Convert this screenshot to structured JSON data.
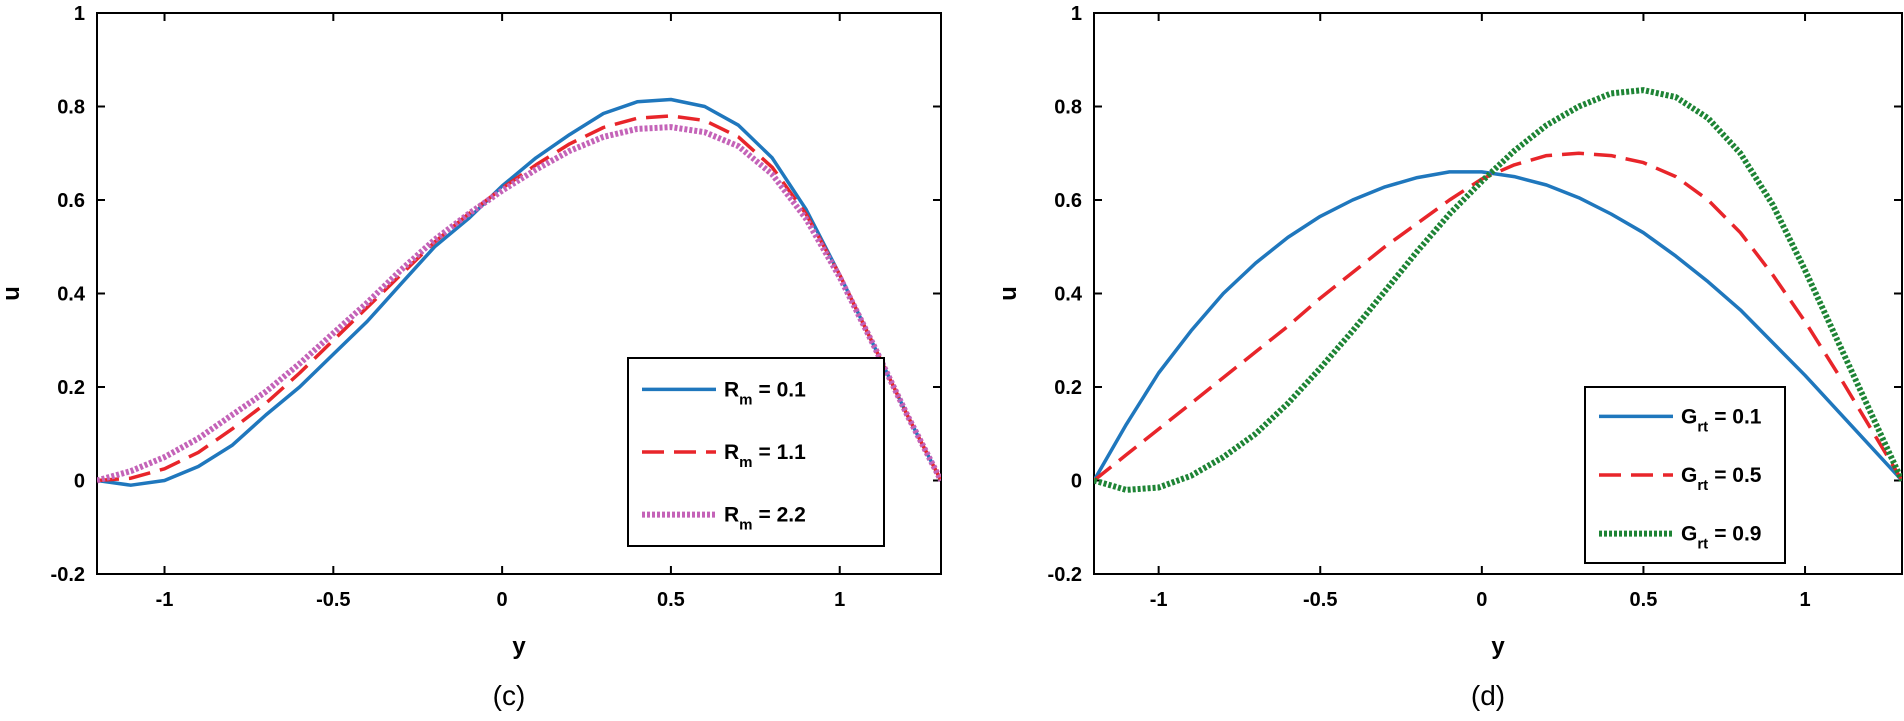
{
  "chart_data": [
    {
      "type": "line",
      "panel": "(c)",
      "caption": "(c)",
      "xlabel": "y",
      "ylabel": "u",
      "xlim": [
        -1.2,
        1.3
      ],
      "ylim": [
        -0.2,
        1.0
      ],
      "xticks": [
        "-1",
        "-0.5",
        "0",
        "0.5",
        "1"
      ],
      "yticks": [
        "-0.2",
        "0",
        "0.2",
        "0.4",
        "0.6",
        "0.8",
        "1"
      ],
      "legend_position": "bottom-right",
      "series": [
        {
          "name": "Rm = 0.1",
          "symbol": "R",
          "subscript": "m",
          "value": "= 0.1",
          "color": "#1f77bd",
          "style": "solid",
          "x": [
            -1.2,
            -1.1,
            -1.0,
            -0.9,
            -0.8,
            -0.7,
            -0.6,
            -0.5,
            -0.4,
            -0.3,
            -0.2,
            -0.1,
            0.0,
            0.1,
            0.2,
            0.3,
            0.4,
            0.5,
            0.6,
            0.7,
            0.8,
            0.9,
            1.0,
            1.1,
            1.2,
            1.3
          ],
          "y": [
            0.0,
            -0.01,
            0.0,
            0.03,
            0.075,
            0.14,
            0.2,
            0.27,
            0.34,
            0.42,
            0.5,
            0.56,
            0.63,
            0.69,
            0.74,
            0.785,
            0.81,
            0.815,
            0.8,
            0.76,
            0.69,
            0.58,
            0.44,
            0.29,
            0.14,
            0.0
          ]
        },
        {
          "name": "Rm = 1.1",
          "symbol": "R",
          "subscript": "m",
          "value": "= 1.1",
          "color": "#e8252a",
          "style": "dashed",
          "x": [
            -1.2,
            -1.1,
            -1.0,
            -0.9,
            -0.8,
            -0.7,
            -0.6,
            -0.5,
            -0.4,
            -0.3,
            -0.2,
            -0.1,
            0.0,
            0.1,
            0.2,
            0.3,
            0.4,
            0.5,
            0.6,
            0.7,
            0.8,
            0.9,
            1.0,
            1.1,
            1.2,
            1.3
          ],
          "y": [
            0.0,
            0.005,
            0.025,
            0.06,
            0.11,
            0.165,
            0.23,
            0.3,
            0.37,
            0.44,
            0.51,
            0.57,
            0.625,
            0.675,
            0.72,
            0.755,
            0.775,
            0.78,
            0.77,
            0.735,
            0.67,
            0.57,
            0.44,
            0.29,
            0.14,
            0.0
          ]
        },
        {
          "name": "Rm = 2.2",
          "symbol": "R",
          "subscript": "m",
          "value": "= 2.2",
          "color": "#c463b8",
          "style": "dotted",
          "x": [
            -1.2,
            -1.1,
            -1.0,
            -0.9,
            -0.8,
            -0.7,
            -0.6,
            -0.5,
            -0.4,
            -0.3,
            -0.2,
            -0.1,
            0.0,
            0.1,
            0.2,
            0.3,
            0.4,
            0.5,
            0.6,
            0.7,
            0.8,
            0.9,
            1.0,
            1.1,
            1.2,
            1.3
          ],
          "y": [
            0.0,
            0.02,
            0.05,
            0.09,
            0.14,
            0.19,
            0.25,
            0.315,
            0.38,
            0.45,
            0.515,
            0.57,
            0.62,
            0.665,
            0.705,
            0.735,
            0.752,
            0.756,
            0.745,
            0.715,
            0.655,
            0.56,
            0.435,
            0.29,
            0.14,
            0.0
          ]
        }
      ]
    },
    {
      "type": "line",
      "panel": "(d)",
      "caption": "(d)",
      "xlabel": "y",
      "ylabel": "u",
      "xlim": [
        -1.2,
        1.3
      ],
      "ylim": [
        -0.2,
        1.0
      ],
      "xticks": [
        "-1",
        "-0.5",
        "0",
        "0.5",
        "1"
      ],
      "yticks": [
        "-0.2",
        "0",
        "0.2",
        "0.4",
        "0.6",
        "0.8",
        "1"
      ],
      "legend_position": "bottom-right",
      "series": [
        {
          "name": "Grt = 0.1",
          "symbol": "G",
          "subscript": "rt",
          "value": "= 0.1",
          "color": "#1f77bd",
          "style": "solid",
          "x": [
            -1.2,
            -1.1,
            -1.0,
            -0.9,
            -0.8,
            -0.7,
            -0.6,
            -0.5,
            -0.4,
            -0.3,
            -0.2,
            -0.1,
            0.0,
            0.1,
            0.2,
            0.3,
            0.4,
            0.5,
            0.6,
            0.7,
            0.8,
            0.9,
            1.0,
            1.1,
            1.2,
            1.3
          ],
          "y": [
            0.0,
            0.12,
            0.23,
            0.32,
            0.4,
            0.465,
            0.52,
            0.565,
            0.6,
            0.628,
            0.648,
            0.66,
            0.66,
            0.65,
            0.632,
            0.605,
            0.57,
            0.53,
            0.48,
            0.425,
            0.365,
            0.295,
            0.225,
            0.15,
            0.075,
            0.0
          ]
        },
        {
          "name": "Grt = 0.5",
          "symbol": "G",
          "subscript": "rt",
          "value": "= 0.5",
          "color": "#e8252a",
          "style": "dashed",
          "x": [
            -1.2,
            -1.1,
            -1.0,
            -0.9,
            -0.8,
            -0.7,
            -0.6,
            -0.5,
            -0.4,
            -0.3,
            -0.2,
            -0.1,
            0.0,
            0.1,
            0.2,
            0.3,
            0.4,
            0.5,
            0.6,
            0.7,
            0.8,
            0.9,
            1.0,
            1.1,
            1.2,
            1.3
          ],
          "y": [
            0.0,
            0.055,
            0.11,
            0.165,
            0.22,
            0.275,
            0.33,
            0.39,
            0.445,
            0.5,
            0.55,
            0.6,
            0.645,
            0.675,
            0.695,
            0.7,
            0.695,
            0.68,
            0.65,
            0.6,
            0.53,
            0.44,
            0.34,
            0.23,
            0.115,
            0.0
          ]
        },
        {
          "name": "Grt = 0.9",
          "symbol": "G",
          "subscript": "rt",
          "value": "= 0.9",
          "color": "#1e8435",
          "style": "dotted",
          "x": [
            -1.2,
            -1.1,
            -1.0,
            -0.9,
            -0.8,
            -0.7,
            -0.6,
            -0.5,
            -0.4,
            -0.3,
            -0.2,
            -0.1,
            0.0,
            0.1,
            0.2,
            0.3,
            0.4,
            0.5,
            0.6,
            0.7,
            0.8,
            0.9,
            1.0,
            1.1,
            1.2,
            1.3
          ],
          "y": [
            0.0,
            -0.02,
            -0.015,
            0.01,
            0.05,
            0.1,
            0.165,
            0.24,
            0.32,
            0.405,
            0.49,
            0.57,
            0.64,
            0.705,
            0.76,
            0.8,
            0.828,
            0.835,
            0.82,
            0.775,
            0.7,
            0.59,
            0.45,
            0.3,
            0.15,
            0.0
          ]
        }
      ]
    }
  ]
}
